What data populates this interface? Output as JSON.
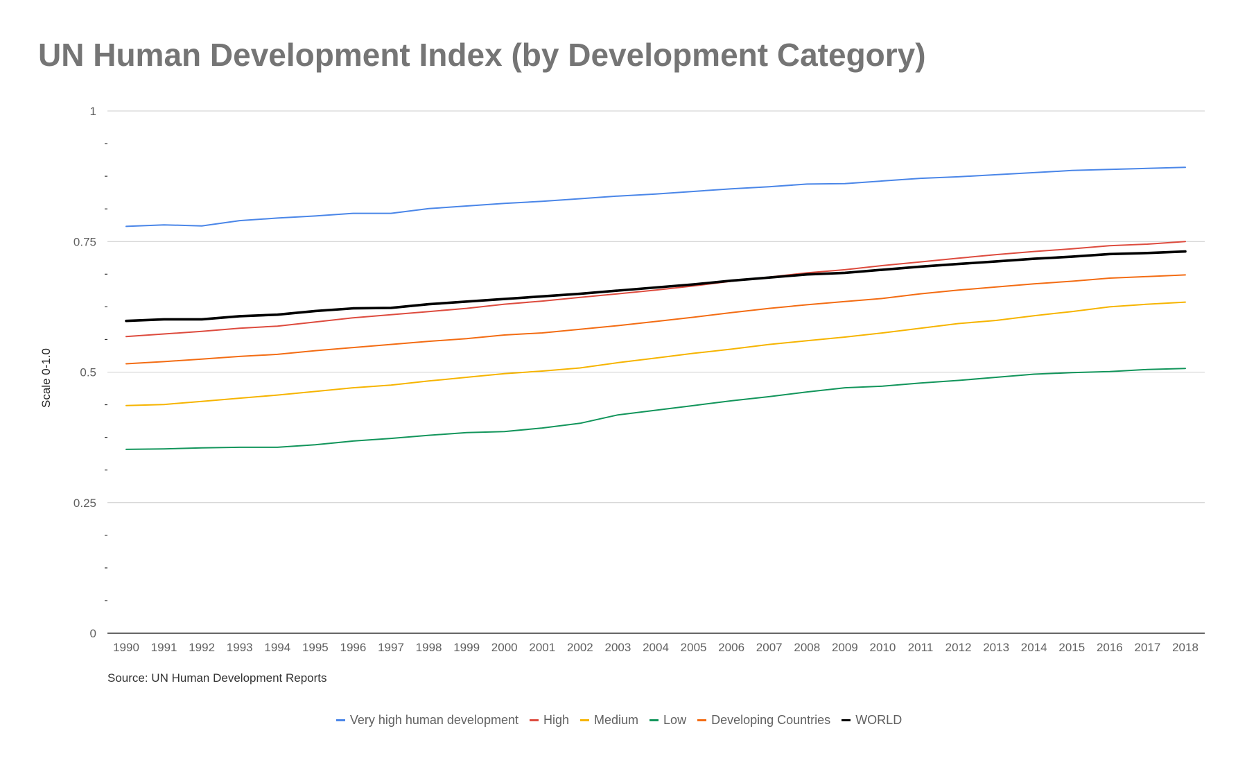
{
  "title": "UN Human Development Index (by Development Category)",
  "source": "Source: UN Human Development Reports",
  "chart_data": {
    "type": "line",
    "title": "UN Human Development Index (by Development Category)",
    "xlabel": "",
    "ylabel": "Scale 0-1.0",
    "ylim": [
      0,
      1
    ],
    "yticks": [
      {
        "value": 0,
        "label": "0"
      },
      {
        "value": 0.25,
        "label": "0.25"
      },
      {
        "value": 0.5,
        "label": "0.5"
      },
      {
        "value": 0.75,
        "label": "0.75"
      },
      {
        "value": 1,
        "label": "1"
      }
    ],
    "minor_yticks": [
      0.0625,
      0.125,
      0.1875,
      0.3125,
      0.375,
      0.4375,
      0.5625,
      0.625,
      0.6875,
      0.8125,
      0.875,
      0.9375
    ],
    "grid": true,
    "legend_position": "bottom",
    "x": [
      "1990",
      "1991",
      "1992",
      "1993",
      "1994",
      "1995",
      "1996",
      "1997",
      "1998",
      "1999",
      "2000",
      "2001",
      "2002",
      "2003",
      "2004",
      "2005",
      "2006",
      "2007",
      "2008",
      "2009",
      "2010",
      "2011",
      "2012",
      "2013",
      "2014",
      "2015",
      "2016",
      "2017",
      "2018"
    ],
    "series": [
      {
        "name": "Very high human development",
        "color": "#4a86e8",
        "width": 2,
        "values": [
          0.779,
          0.782,
          0.78,
          0.79,
          0.795,
          0.799,
          0.804,
          0.804,
          0.813,
          0.818,
          0.823,
          0.827,
          0.832,
          0.837,
          0.841,
          0.846,
          0.851,
          0.855,
          0.86,
          0.861,
          0.866,
          0.871,
          0.874,
          0.878,
          0.882,
          0.886,
          0.888,
          0.89,
          0.892
        ]
      },
      {
        "name": "High",
        "color": "#dd4b3e",
        "width": 2,
        "values": [
          0.568,
          0.573,
          0.578,
          0.584,
          0.588,
          0.596,
          0.604,
          0.61,
          0.616,
          0.622,
          0.63,
          0.636,
          0.643,
          0.65,
          0.657,
          0.665,
          0.674,
          0.682,
          0.69,
          0.696,
          0.704,
          0.711,
          0.718,
          0.725,
          0.731,
          0.736,
          0.742,
          0.745,
          0.75
        ]
      },
      {
        "name": "Medium",
        "color": "#f6b400",
        "width": 2,
        "values": [
          0.436,
          0.438,
          0.444,
          0.45,
          0.456,
          0.463,
          0.47,
          0.475,
          0.483,
          0.49,
          0.497,
          0.502,
          0.508,
          0.518,
          0.527,
          0.536,
          0.544,
          0.553,
          0.56,
          0.567,
          0.575,
          0.584,
          0.593,
          0.599,
          0.608,
          0.616,
          0.625,
          0.63,
          0.634
        ]
      },
      {
        "name": "Low",
        "color": "#12955b",
        "width": 2,
        "values": [
          0.352,
          0.353,
          0.355,
          0.356,
          0.356,
          0.361,
          0.368,
          0.373,
          0.379,
          0.384,
          0.386,
          0.393,
          0.402,
          0.418,
          0.427,
          0.436,
          0.445,
          0.453,
          0.462,
          0.47,
          0.473,
          0.479,
          0.484,
          0.49,
          0.496,
          0.499,
          0.501,
          0.505,
          0.507
        ]
      },
      {
        "name": "Developing Countries",
        "color": "#f36c13",
        "width": 2,
        "values": [
          0.516,
          0.52,
          0.525,
          0.53,
          0.534,
          0.541,
          0.547,
          0.553,
          0.559,
          0.564,
          0.571,
          0.575,
          0.582,
          0.589,
          0.597,
          0.605,
          0.614,
          0.622,
          0.629,
          0.635,
          0.641,
          0.65,
          0.657,
          0.663,
          0.669,
          0.674,
          0.68,
          0.683,
          0.686
        ]
      },
      {
        "name": "WORLD",
        "color": "#000000",
        "width": 3.6,
        "values": [
          0.598,
          0.601,
          0.601,
          0.607,
          0.61,
          0.617,
          0.622,
          0.623,
          0.63,
          0.635,
          0.64,
          0.645,
          0.65,
          0.656,
          0.662,
          0.668,
          0.675,
          0.681,
          0.687,
          0.69,
          0.696,
          0.702,
          0.707,
          0.712,
          0.717,
          0.721,
          0.726,
          0.728,
          0.731
        ]
      }
    ]
  }
}
